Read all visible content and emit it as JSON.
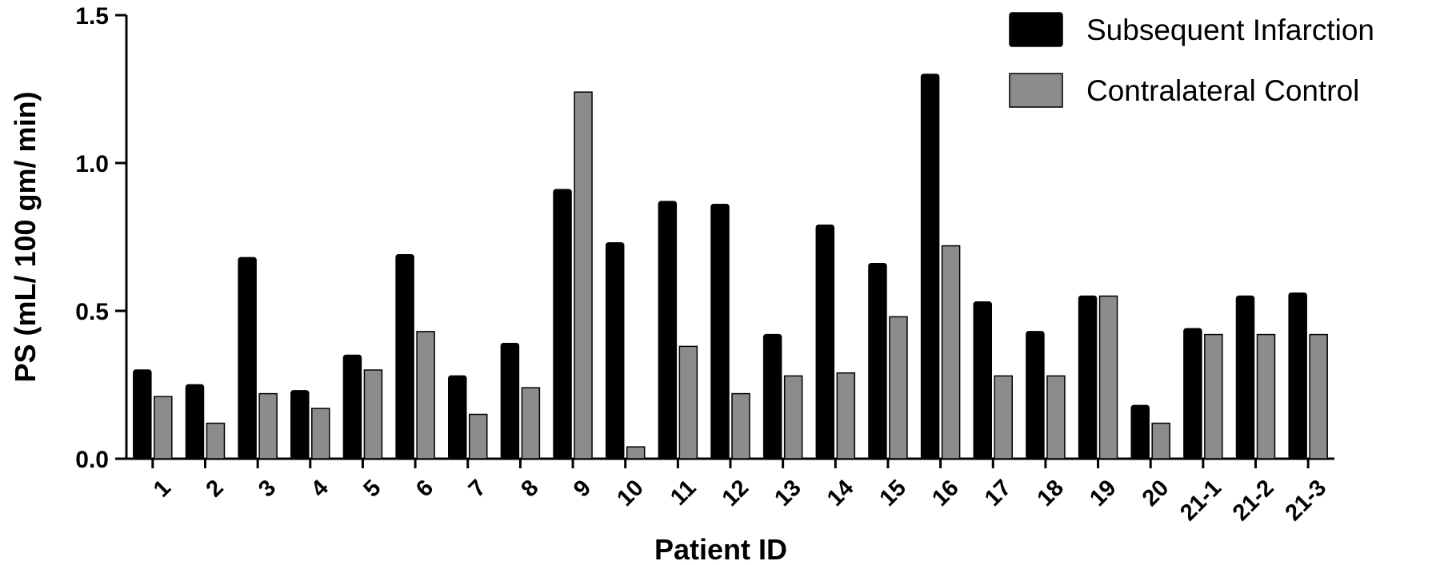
{
  "chart_data": {
    "type": "bar",
    "title": "",
    "xlabel": "Patient ID",
    "ylabel": "PS (mL/ 100 gm/ min)",
    "ylim": [
      0,
      1.5
    ],
    "yticks": [
      "0.0",
      "0.5",
      "1.0",
      "1.5"
    ],
    "grid": false,
    "legend_position": "top-right",
    "categories": [
      "1",
      "2",
      "3",
      "4",
      "5",
      "6",
      "7",
      "8",
      "9",
      "10",
      "11",
      "12",
      "13",
      "14",
      "15",
      "16",
      "17",
      "18",
      "19",
      "20",
      "21-1",
      "21-2",
      "21-3"
    ],
    "series": [
      {
        "name": "Subsequent Infarction",
        "color": "#000000",
        "values": [
          0.3,
          0.25,
          0.68,
          0.23,
          0.35,
          0.69,
          0.28,
          0.39,
          0.91,
          0.73,
          0.87,
          0.86,
          0.42,
          0.79,
          0.66,
          1.3,
          0.53,
          0.43,
          0.55,
          0.18,
          0.44,
          0.55,
          0.56
        ]
      },
      {
        "name": "Contralateral Control",
        "color": "#8c8c8c",
        "values": [
          0.21,
          0.12,
          0.22,
          0.17,
          0.3,
          0.43,
          0.15,
          0.24,
          1.24,
          0.04,
          0.38,
          0.22,
          0.28,
          0.29,
          0.48,
          0.72,
          0.28,
          0.28,
          0.55,
          0.12,
          0.42,
          0.42,
          0.42
        ]
      }
    ]
  }
}
